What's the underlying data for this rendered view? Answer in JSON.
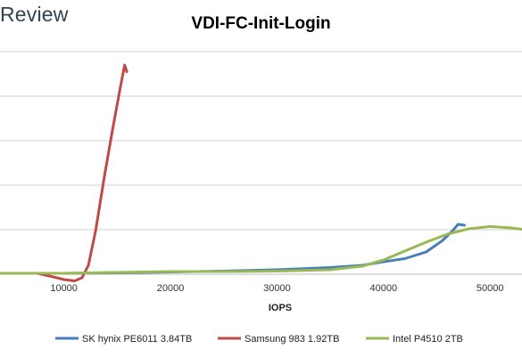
{
  "brand": "Review",
  "chart_data": {
    "type": "line",
    "title": "VDI-FC-Init-Login",
    "xlabel": "IOPS",
    "ylabel": "",
    "xlim": [
      4000,
      53000
    ],
    "ylim": [
      0,
      6
    ],
    "x_ticks": [
      10000,
      20000,
      30000,
      40000,
      50000
    ],
    "x_tick_labels": [
      "10000",
      "20000",
      "30000",
      "40000",
      "50000"
    ],
    "y_gridlines": [
      1,
      2,
      3,
      4,
      5
    ],
    "grid": "horizontal",
    "legend_position": "bottom",
    "series": [
      {
        "name": "SK hynix PE6011 3.84TB",
        "color": "#4a7ebb",
        "points": [
          [
            4000,
            0.02
          ],
          [
            10000,
            0.02
          ],
          [
            15000,
            0.03
          ],
          [
            20000,
            0.05
          ],
          [
            25000,
            0.07
          ],
          [
            30000,
            0.1
          ],
          [
            35000,
            0.15
          ],
          [
            38000,
            0.2
          ],
          [
            40000,
            0.28
          ],
          [
            42000,
            0.35
          ],
          [
            44000,
            0.5
          ],
          [
            45500,
            0.75
          ],
          [
            46500,
            0.98
          ],
          [
            47000,
            1.12
          ],
          [
            47600,
            1.1
          ]
        ]
      },
      {
        "name": "Samsung 983 1.92TB",
        "color": "#be4b48",
        "points": [
          [
            4000,
            0.02
          ],
          [
            7500,
            0.02
          ],
          [
            9000,
            -0.06
          ],
          [
            10000,
            -0.12
          ],
          [
            11000,
            -0.15
          ],
          [
            11700,
            -0.08
          ],
          [
            12300,
            0.2
          ],
          [
            13000,
            1.0
          ],
          [
            13800,
            2.2
          ],
          [
            14600,
            3.3
          ],
          [
            15300,
            4.2
          ],
          [
            15700,
            4.7
          ],
          [
            15900,
            4.55
          ]
        ]
      },
      {
        "name": "Intel P4510 2TB",
        "color": "#98b954",
        "points": [
          [
            4000,
            0.02
          ],
          [
            10000,
            0.02
          ],
          [
            15000,
            0.04
          ],
          [
            20000,
            0.06
          ],
          [
            25000,
            0.06
          ],
          [
            30000,
            0.07
          ],
          [
            35000,
            0.1
          ],
          [
            38000,
            0.18
          ],
          [
            40000,
            0.32
          ],
          [
            42000,
            0.52
          ],
          [
            44000,
            0.72
          ],
          [
            46000,
            0.9
          ],
          [
            48000,
            1.02
          ],
          [
            50000,
            1.07
          ],
          [
            52000,
            1.04
          ],
          [
            53000,
            1.01
          ]
        ]
      }
    ]
  }
}
